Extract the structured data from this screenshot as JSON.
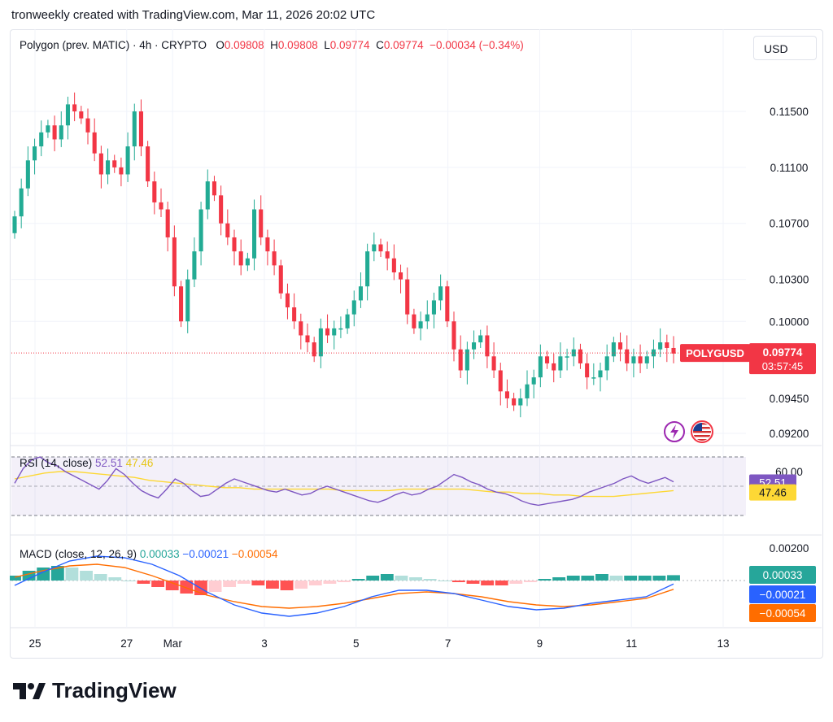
{
  "caption": "tronweekly created with TradingView.com, Mar 11, 2026 20:02 UTC",
  "legend": {
    "symbol": "Polygon (prev. MATIC) · 4h · CRYPTO",
    "o_label": "O",
    "o": "0.09808",
    "h_label": "H",
    "h": "0.09808",
    "l_label": "L",
    "l": "0.09774",
    "c_label": "C",
    "c": "0.09774",
    "change": "−0.00034 (−0.34%)"
  },
  "currency": "USD",
  "price_axis_labels": [
    "0.11500",
    "0.11100",
    "0.10700",
    "0.10300",
    "0.10000",
    "0.09450",
    "0.09200"
  ],
  "ticker_tag": "POLYGUSD",
  "last_price": "0.09774",
  "countdown": "03:57:45",
  "rsi": {
    "title": "RSI (14, close)",
    "value": "52.51",
    "ma_value": "47.46",
    "axis_label": "60.00"
  },
  "macd": {
    "title": "MACD (close, 12, 26, 9)",
    "hist": "0.00033",
    "macd": "−0.00021",
    "signal": "−0.00054",
    "axis_label": "0.00200"
  },
  "brand": "TradingView",
  "colors": {
    "up": "#22ab94",
    "down": "#f23645",
    "rsi_line": "#7e57c2",
    "rsi_ma": "#fdd835",
    "macd_line": "#2962ff",
    "signal_line": "#ff6d00",
    "hist_up_strong": "#26a69a",
    "hist_up_weak": "#b2dfdb",
    "hist_down_strong": "#ff5252",
    "hist_down_weak": "#ffcdd2"
  },
  "chart_data": {
    "type": "candlestick",
    "title": "Polygon (prev. MATIC) · 4h · CRYPTO",
    "x_tick_labels": [
      {
        "label": "25",
        "day": 25
      },
      {
        "label": "27",
        "day": 27
      },
      {
        "label": "Mar",
        "day": 28
      },
      {
        "label": "3",
        "day": 30
      },
      {
        "label": "5",
        "day": 32
      },
      {
        "label": "7",
        "day": 34
      },
      {
        "label": "9",
        "day": 36
      },
      {
        "label": "11",
        "day": 38
      },
      {
        "label": "13",
        "day": 40
      }
    ],
    "price_axis": {
      "ticks": [
        0.115,
        0.111,
        0.107,
        0.103,
        0.1,
        0.0945,
        0.092
      ],
      "last": 0.09774
    },
    "close": [
      0.1075,
      0.1095,
      0.1115,
      0.1125,
      0.1135,
      0.114,
      0.113,
      0.114,
      0.1155,
      0.115,
      0.1145,
      0.1135,
      0.112,
      0.1105,
      0.1115,
      0.111,
      0.1105,
      0.1125,
      0.115,
      0.1125,
      0.11,
      0.1085,
      0.108,
      0.106,
      0.1025,
      0.1,
      0.103,
      0.105,
      0.108,
      0.11,
      0.109,
      0.107,
      0.106,
      0.105,
      0.104,
      0.1045,
      0.108,
      0.106,
      0.105,
      0.104,
      0.102,
      0.101,
      0.1,
      0.099,
      0.0985,
      0.0975,
      0.0995,
      0.099,
      0.0995,
      0.0995,
      0.1005,
      0.1015,
      0.1025,
      0.105,
      0.1055,
      0.105,
      0.1045,
      0.1035,
      0.103,
      0.1005,
      0.0995,
      0.1,
      0.1005,
      0.1015,
      0.1025,
      0.1,
      0.098,
      0.0965,
      0.098,
      0.0985,
      0.099,
      0.0975,
      0.0965,
      0.095,
      0.0945,
      0.094,
      0.0945,
      0.0955,
      0.096,
      0.0975,
      0.097,
      0.0965,
      0.0975,
      0.0975,
      0.098,
      0.097,
      0.096,
      0.096,
      0.0965,
      0.0975,
      0.0985,
      0.098,
      0.097,
      0.0975,
      0.097,
      0.0975,
      0.098,
      0.0985,
      0.0981,
      0.0977
    ],
    "rsi": {
      "values": [
        52,
        62,
        68,
        70,
        66,
        64,
        60,
        57,
        54,
        51,
        48,
        54,
        62,
        58,
        52,
        47,
        44,
        42,
        48,
        55,
        52,
        47,
        43,
        44,
        48,
        52,
        55,
        53,
        51,
        49,
        47,
        46,
        48,
        46,
        44,
        45,
        48,
        50,
        48,
        46,
        44,
        42,
        40,
        39,
        41,
        44,
        46,
        44,
        45,
        48,
        50,
        54,
        58,
        56,
        53,
        51,
        48,
        46,
        45,
        43,
        40,
        38,
        37,
        38,
        39,
        40,
        41,
        43,
        46,
        48,
        50,
        52,
        55,
        57,
        54,
        52,
        54,
        56,
        53
      ],
      "ma": [
        55,
        57,
        59,
        60,
        60,
        59,
        58,
        57,
        56,
        54,
        53,
        52,
        51,
        50,
        49,
        49,
        48,
        48,
        48,
        48,
        48,
        48,
        47,
        47,
        47,
        47,
        48,
        48,
        48,
        48,
        48,
        47,
        46,
        46,
        45,
        45,
        44,
        44,
        43,
        43,
        43,
        44,
        45,
        46,
        47
      ],
      "level": 60
    },
    "macd": {
      "histogram": [
        0.0003,
        0.0006,
        0.0008,
        0.0009,
        0.0008,
        0.0006,
        0.0004,
        0.0002,
        0.0,
        -0.0002,
        -0.0004,
        -0.0006,
        -0.0008,
        -0.0009,
        -0.0007,
        -0.0004,
        -0.0002,
        -0.0003,
        -0.0005,
        -0.0006,
        -0.0005,
        -0.0003,
        -0.0002,
        -0.0001,
        0.0001,
        0.0003,
        0.0004,
        0.0003,
        0.0002,
        0.0001,
        0.0,
        -0.0001,
        -0.0002,
        -0.0003,
        -0.0003,
        -0.0002,
        -0.0001,
        0.0001,
        0.0002,
        0.0003,
        0.0003,
        0.0004,
        0.0003,
        0.0003,
        0.0003,
        0.0003,
        0.00033
      ],
      "macd_line": [
        -0.0003,
        0.0005,
        0.0012,
        0.0015,
        0.0014,
        0.001,
        0.0003,
        -0.0007,
        -0.0015,
        -0.002,
        -0.0022,
        -0.002,
        -0.0016,
        -0.001,
        -0.0006,
        -0.0006,
        -0.0008,
        -0.0012,
        -0.0016,
        -0.0018,
        -0.0017,
        -0.0014,
        -0.0012,
        -0.001,
        -0.00021
      ],
      "signal_line": [
        0.0002,
        0.0006,
        0.0009,
        0.001,
        0.0008,
        0.0003,
        -0.0003,
        -0.0009,
        -0.0013,
        -0.0016,
        -0.0017,
        -0.0016,
        -0.0014,
        -0.0011,
        -0.0008,
        -0.0007,
        -0.0008,
        -0.001,
        -0.0013,
        -0.0015,
        -0.0016,
        -0.0015,
        -0.0013,
        -0.0011,
        -0.00054
      ],
      "axis_label": 0.002
    }
  }
}
